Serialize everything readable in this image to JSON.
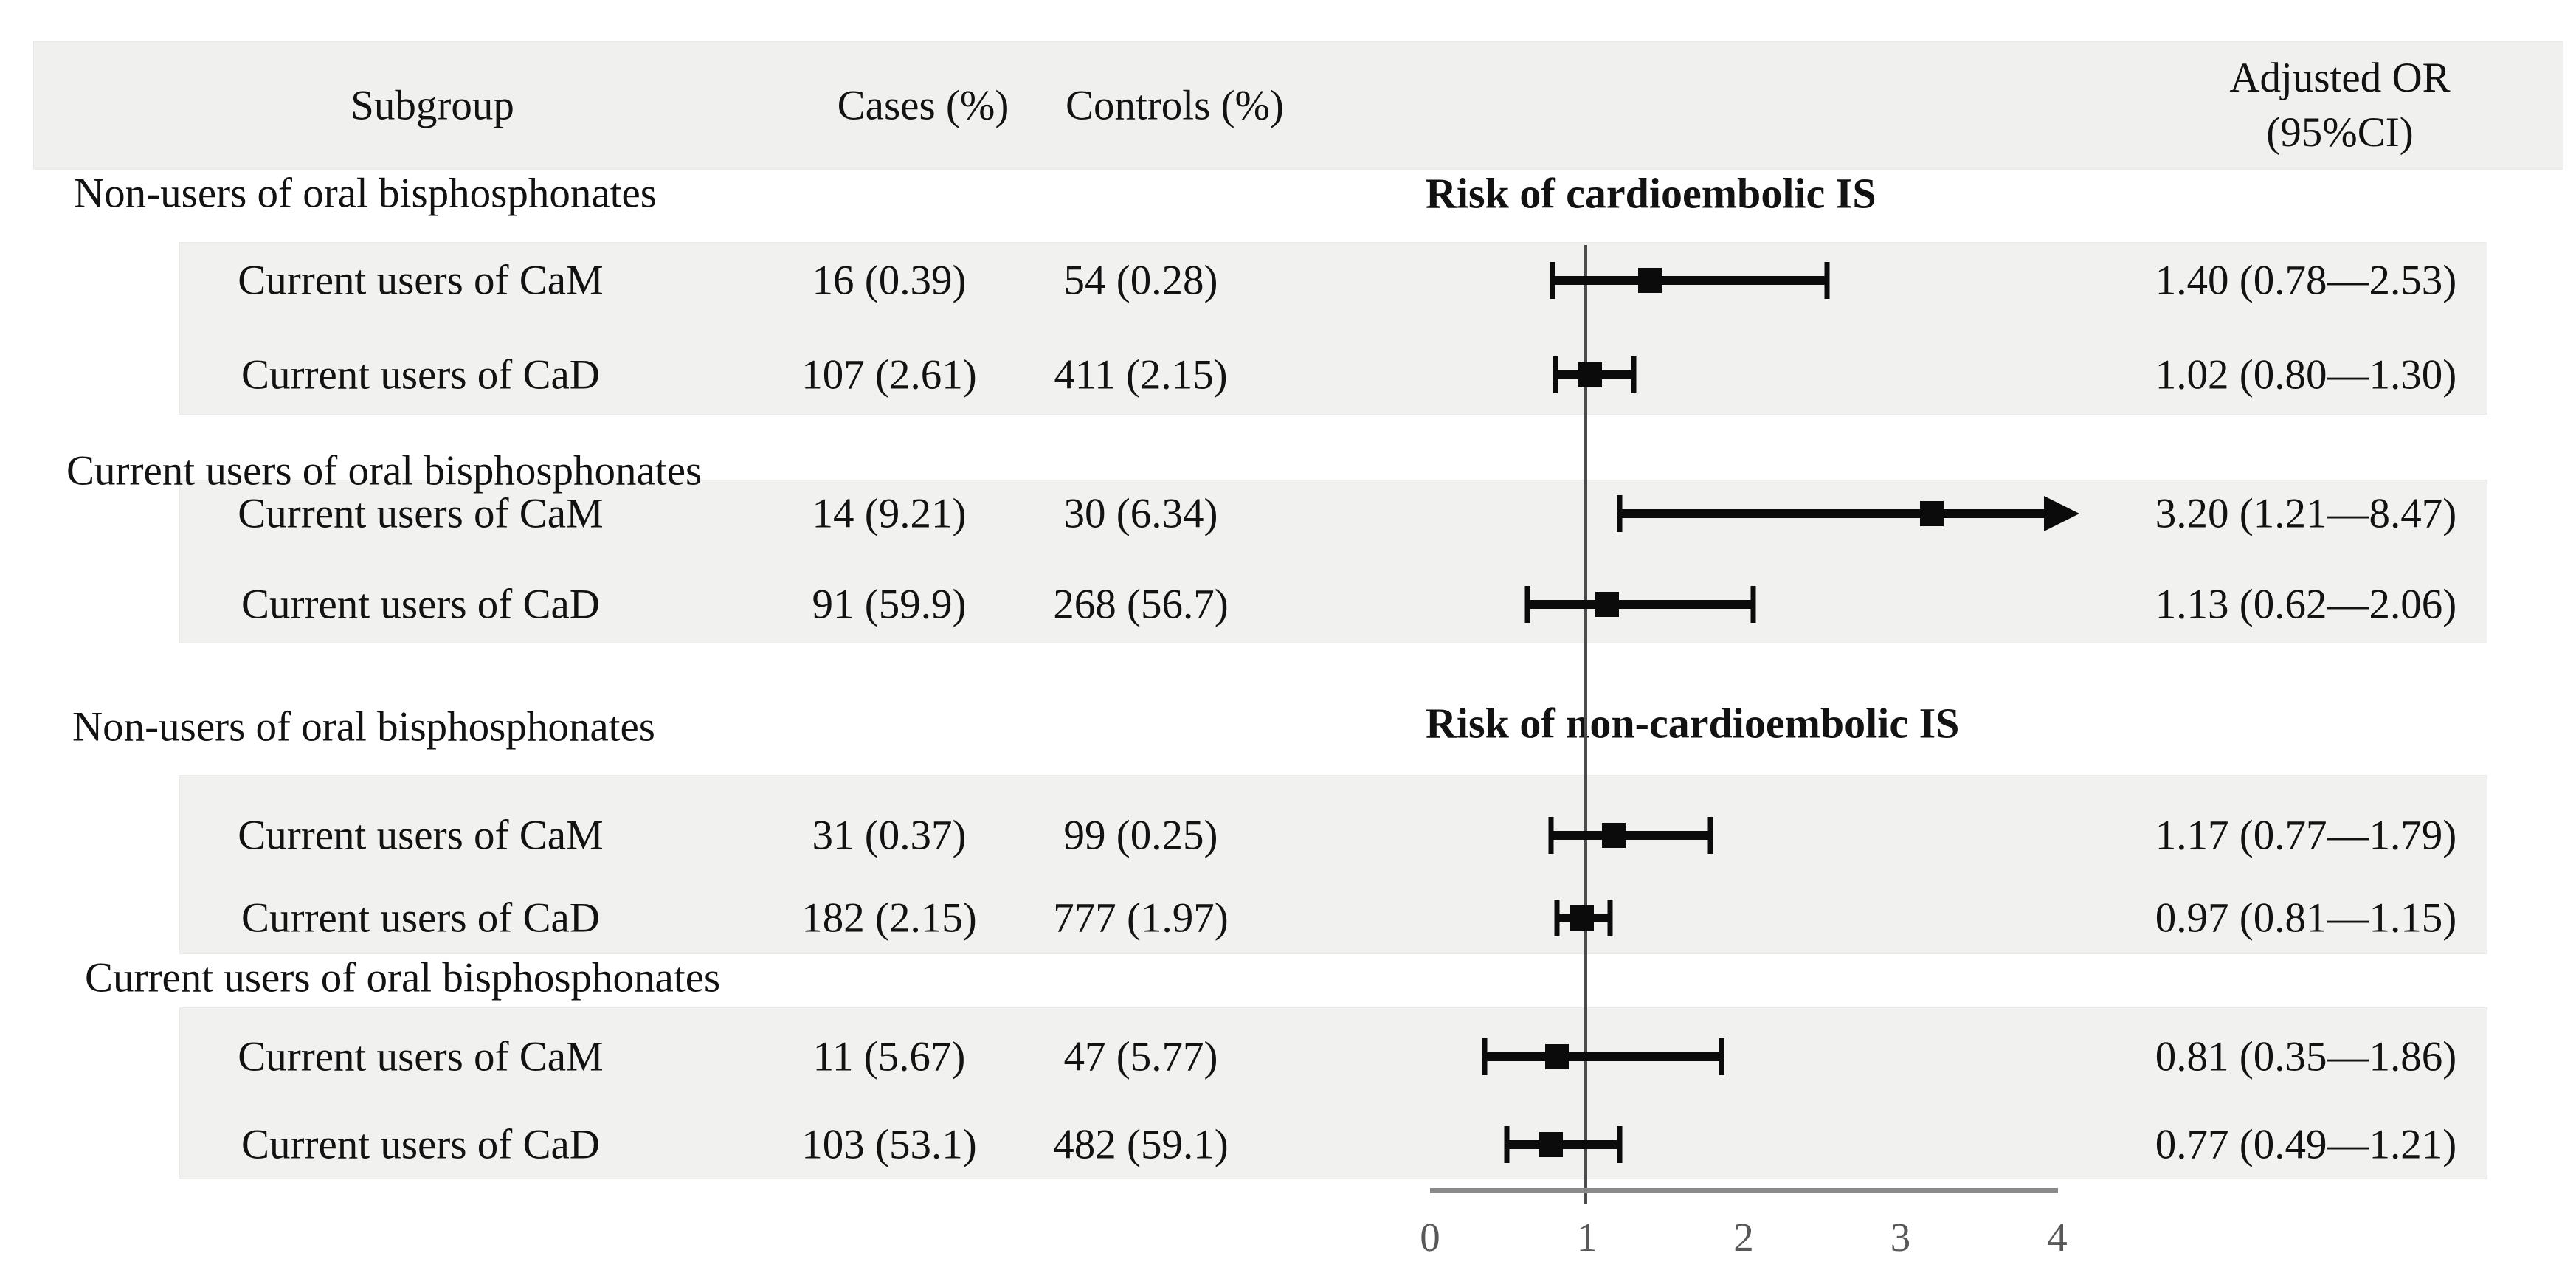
{
  "header": {
    "subgroup": "Subgroup",
    "cases": "Cases (%)",
    "controls": "Controls (%)",
    "adjusted_or_line1": "Adjusted OR",
    "adjusted_or_line2": "(95%CI)"
  },
  "sections": [
    {
      "title": "Risk of cardioembolic IS",
      "groups": [
        {
          "label": "Non-users of oral bisphosphonates",
          "rows": [
            {
              "label": "Current users of CaM",
              "cases": "16 (0.39)",
              "controls": "54 (0.28)",
              "or_text": "1.40 (0.78—2.53)"
            },
            {
              "label": "Current users of CaD",
              "cases": "107 (2.61)",
              "controls": "411 (2.15)",
              "or_text": "1.02 (0.80—1.30)"
            }
          ]
        },
        {
          "label": "Current users of oral bisphosphonates",
          "rows": [
            {
              "label": "Current users of CaM",
              "cases": "14 (9.21)",
              "controls": "30 (6.34)",
              "or_text": "3.20 (1.21—8.47)"
            },
            {
              "label": "Current users of CaD",
              "cases": "91 (59.9)",
              "controls": "268 (56.7)",
              "or_text": "1.13 (0.62—2.06)"
            }
          ]
        }
      ]
    },
    {
      "title": "Risk of non-cardioembolic IS",
      "groups": [
        {
          "label": "Non-users of oral bisphosphonates",
          "rows": [
            {
              "label": "Current users of CaM",
              "cases": "31 (0.37)",
              "controls": "99 (0.25)",
              "or_text": "1.17 (0.77—1.79)"
            },
            {
              "label": "Current users of CaD",
              "cases": "182 (2.15)",
              "controls": "777 (1.97)",
              "or_text": "0.97 (0.81—1.15)"
            }
          ]
        },
        {
          "label": "Current users of oral bisphosphonates",
          "rows": [
            {
              "label": "Current users of CaM",
              "cases": "11 (5.67)",
              "controls": "47 (5.77)",
              "or_text": "0.81 (0.35—1.86)"
            },
            {
              "label": "Current users of CaD",
              "cases": "103 (53.1)",
              "controls": "482 (59.1)",
              "or_text": "0.77 (0.49—1.21)"
            }
          ]
        }
      ]
    }
  ],
  "axis": {
    "ticks": [
      "0",
      "1",
      "2",
      "3",
      "4"
    ],
    "min": 0,
    "max": 4,
    "reference_value": 1
  },
  "colors": {
    "band": "#f1f1ef",
    "header_band": "#f0f0ee",
    "marker": "#0b0b0b",
    "axis_line": "#8a8a8a",
    "reference_line": "#4c4c4c",
    "text": "#121212",
    "tick_text": "#585858"
  },
  "chart_data": {
    "type": "scatter",
    "variant": "forest-plot",
    "title": "",
    "xlabel": "Adjusted OR (95%CI)",
    "xlim": [
      0,
      4
    ],
    "x_ticks": [
      0,
      1,
      2,
      3,
      4
    ],
    "reference_line_x": 1,
    "grid": false,
    "legend": "none",
    "series": [
      {
        "name": "Risk of cardioembolic IS",
        "points": [
          {
            "group": "Non-users of oral bisphosphonates",
            "label": "Current users of CaM",
            "or": 1.4,
            "ci": [
              0.78,
              2.53
            ],
            "ci_clipped_right": false
          },
          {
            "group": "Non-users of oral bisphosphonates",
            "label": "Current users of CaD",
            "or": 1.02,
            "ci": [
              0.8,
              1.3
            ],
            "ci_clipped_right": false
          },
          {
            "group": "Current users of oral bisphosphonates",
            "label": "Current users of CaM",
            "or": 3.2,
            "ci": [
              1.21,
              8.47
            ],
            "ci_clipped_right": true
          },
          {
            "group": "Current users of oral bisphosphonates",
            "label": "Current users of CaD",
            "or": 1.13,
            "ci": [
              0.62,
              2.06
            ],
            "ci_clipped_right": false
          }
        ]
      },
      {
        "name": "Risk of non-cardioembolic IS",
        "points": [
          {
            "group": "Non-users of oral bisphosphonates",
            "label": "Current users of CaM",
            "or": 1.17,
            "ci": [
              0.77,
              1.79
            ],
            "ci_clipped_right": false
          },
          {
            "group": "Non-users of oral bisphosphonates",
            "label": "Current users of CaD",
            "or": 0.97,
            "ci": [
              0.81,
              1.15
            ],
            "ci_clipped_right": false
          },
          {
            "group": "Current users of oral bisphosphonates",
            "label": "Current users of CaM",
            "or": 0.81,
            "ci": [
              0.35,
              1.86
            ],
            "ci_clipped_right": false
          },
          {
            "group": "Current users of oral bisphosphonates",
            "label": "Current users of CaD",
            "or": 0.77,
            "ci": [
              0.49,
              1.21
            ],
            "ci_clipped_right": false
          }
        ]
      }
    ]
  }
}
